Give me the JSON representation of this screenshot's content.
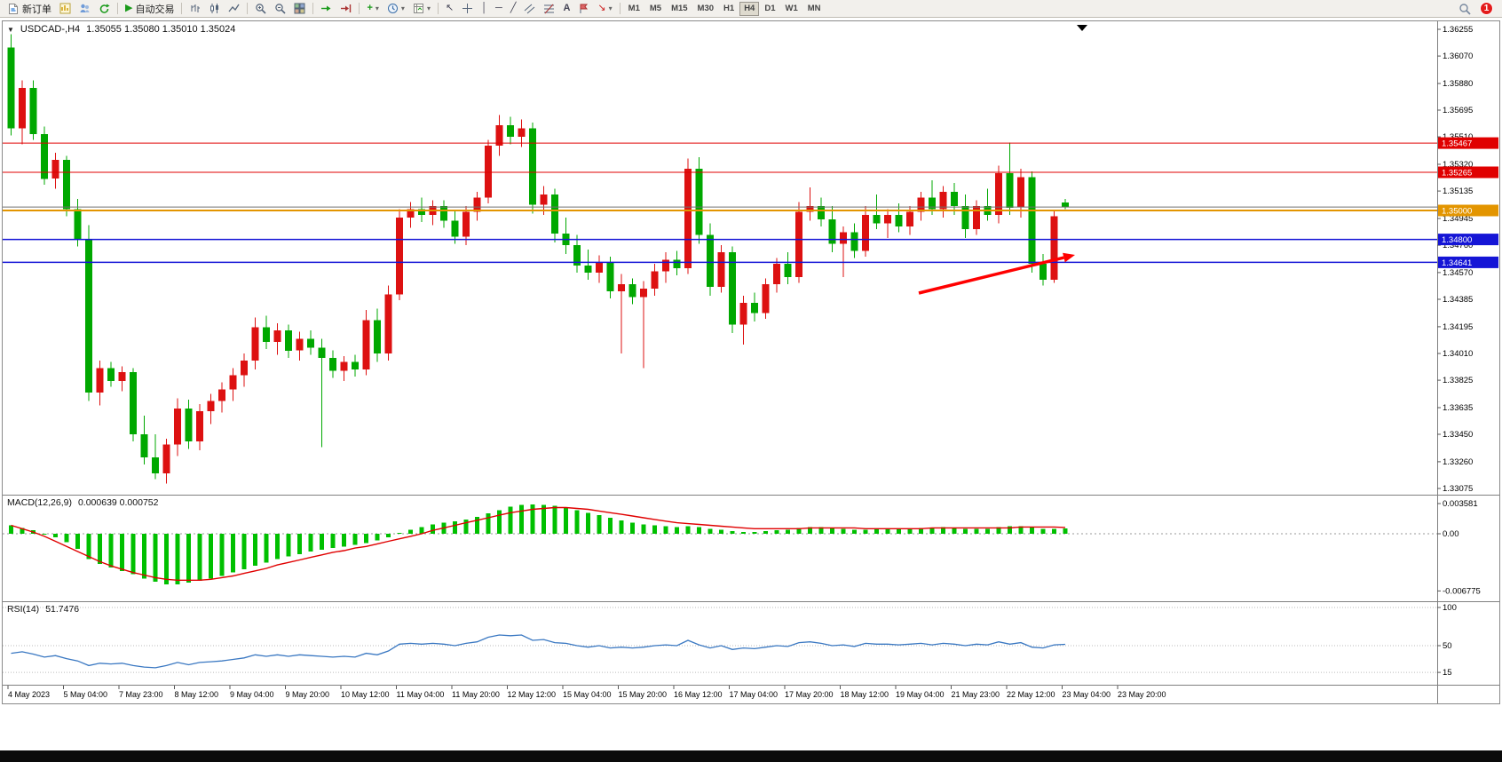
{
  "toolbar": {
    "new_order_label": "新订单",
    "auto_trading_label": "自动交易",
    "timeframes": [
      "M1",
      "M5",
      "M15",
      "M30",
      "H1",
      "H4",
      "D1",
      "W1",
      "MN"
    ],
    "active_timeframe": "H4",
    "notification_count": "1"
  },
  "icons": {
    "collapse_arrow": "▼",
    "play": "▶",
    "cursor": "↖",
    "crosshair": "+",
    "vertical_line": "│",
    "horizontal_line": "─",
    "trendline": "╱",
    "channel": "╱╱",
    "fibonacci": "≡",
    "text_tool": "A",
    "arrows_tool": "↘",
    "dropdown": "▾",
    "indicator_plus": "+"
  },
  "chart_data": [
    {
      "type": "candlestick",
      "title": "USDCAD-,H4",
      "ohlc_label": "1.35055 1.35080 1.35010 1.35024",
      "up_color": "#dd1111",
      "down_color": "#00a800",
      "candles": [
        [
          1.3613,
          1.3622,
          1.3552,
          1.3557
        ],
        [
          1.3557,
          1.359,
          1.3546,
          1.3585
        ],
        [
          1.3585,
          1.359,
          1.3549,
          1.3553
        ],
        [
          1.3553,
          1.3558,
          1.3518,
          1.3522
        ],
        [
          1.3522,
          1.354,
          1.3515,
          1.3535
        ],
        [
          1.3535,
          1.3538,
          1.3496,
          1.3501
        ],
        [
          1.3501,
          1.3508,
          1.3475,
          1.348
        ],
        [
          1.348,
          1.349,
          1.3368,
          1.3374
        ],
        [
          1.3374,
          1.3396,
          1.3365,
          1.3391
        ],
        [
          1.3391,
          1.3395,
          1.3378,
          1.3382
        ],
        [
          1.3382,
          1.3392,
          1.3375,
          1.3388
        ],
        [
          1.3388,
          1.3391,
          1.334,
          1.3345
        ],
        [
          1.3345,
          1.3358,
          1.3324,
          1.3329
        ],
        [
          1.3329,
          1.3345,
          1.3314,
          1.3318
        ],
        [
          1.3318,
          1.3342,
          1.3311,
          1.3338
        ],
        [
          1.3338,
          1.337,
          1.333,
          1.3363
        ],
        [
          1.3363,
          1.3369,
          1.3335,
          1.334
        ],
        [
          1.334,
          1.3366,
          1.3334,
          1.3361
        ],
        [
          1.3361,
          1.3373,
          1.3352,
          1.3368
        ],
        [
          1.3368,
          1.3381,
          1.336,
          1.3376
        ],
        [
          1.3376,
          1.3391,
          1.3368,
          1.3386
        ],
        [
          1.3386,
          1.3401,
          1.3378,
          1.3396
        ],
        [
          1.3396,
          1.3426,
          1.339,
          1.3419
        ],
        [
          1.3419,
          1.3427,
          1.3404,
          1.3409
        ],
        [
          1.3409,
          1.3422,
          1.34,
          1.3417
        ],
        [
          1.3417,
          1.3421,
          1.3398,
          1.3403
        ],
        [
          1.3403,
          1.3416,
          1.3396,
          1.3411
        ],
        [
          1.3411,
          1.3417,
          1.34,
          1.3405
        ],
        [
          1.3405,
          1.3411,
          1.3336,
          1.3398
        ],
        [
          1.3398,
          1.3403,
          1.3384,
          1.3389
        ],
        [
          1.3389,
          1.3399,
          1.3382,
          1.3395
        ],
        [
          1.3395,
          1.34,
          1.3385,
          1.339
        ],
        [
          1.339,
          1.3431,
          1.3386,
          1.3424
        ],
        [
          1.3424,
          1.3432,
          1.3395,
          1.3401
        ],
        [
          1.3401,
          1.3448,
          1.3396,
          1.3442
        ],
        [
          1.3442,
          1.3501,
          1.3438,
          1.3495
        ],
        [
          1.3495,
          1.3506,
          1.3488,
          1.3501
        ],
        [
          1.3501,
          1.3509,
          1.3492,
          1.3497
        ],
        [
          1.3497,
          1.3507,
          1.349,
          1.3503
        ],
        [
          1.3503,
          1.3507,
          1.3488,
          1.3493
        ],
        [
          1.3493,
          1.35,
          1.3477,
          1.3482
        ],
        [
          1.3482,
          1.3503,
          1.3476,
          1.3499
        ],
        [
          1.3499,
          1.3513,
          1.3493,
          1.3509
        ],
        [
          1.3509,
          1.3549,
          1.3505,
          1.3545
        ],
        [
          1.3545,
          1.3566,
          1.3538,
          1.3559
        ],
        [
          1.3559,
          1.3565,
          1.3546,
          1.3551
        ],
        [
          1.3551,
          1.3563,
          1.3544,
          1.3557
        ],
        [
          1.3557,
          1.3561,
          1.3498,
          1.3504
        ],
        [
          1.3504,
          1.3517,
          1.3497,
          1.3511
        ],
        [
          1.3511,
          1.3515,
          1.3478,
          1.3484
        ],
        [
          1.3484,
          1.3495,
          1.347,
          1.3476
        ],
        [
          1.3476,
          1.3483,
          1.3457,
          1.3462
        ],
        [
          1.3462,
          1.3473,
          1.3452,
          1.3457
        ],
        [
          1.3457,
          1.3469,
          1.345,
          1.3464
        ],
        [
          1.3464,
          1.3468,
          1.3439,
          1.3444
        ],
        [
          1.3444,
          1.3456,
          1.3401,
          1.3449
        ],
        [
          1.3449,
          1.3453,
          1.3435,
          1.344
        ],
        [
          1.344,
          1.3451,
          1.3391,
          1.3446
        ],
        [
          1.3446,
          1.3463,
          1.3441,
          1.3458
        ],
        [
          1.3458,
          1.3471,
          1.345,
          1.3466
        ],
        [
          1.3466,
          1.3472,
          1.3455,
          1.346
        ],
        [
          1.346,
          1.3536,
          1.3456,
          1.3529
        ],
        [
          1.3529,
          1.3537,
          1.3477,
          1.3483
        ],
        [
          1.3483,
          1.3491,
          1.3441,
          1.3447
        ],
        [
          1.3447,
          1.3476,
          1.3443,
          1.3471
        ],
        [
          1.3471,
          1.3475,
          1.3415,
          1.3421
        ],
        [
          1.3421,
          1.3441,
          1.3407,
          1.3436
        ],
        [
          1.3436,
          1.3443,
          1.3423,
          1.3429
        ],
        [
          1.3429,
          1.3453,
          1.3425,
          1.3449
        ],
        [
          1.3449,
          1.3467,
          1.3443,
          1.3463
        ],
        [
          1.3463,
          1.3471,
          1.3449,
          1.3454
        ],
        [
          1.3454,
          1.3506,
          1.345,
          1.3499
        ],
        [
          1.3499,
          1.3516,
          1.3493,
          1.3503
        ],
        [
          1.3503,
          1.3509,
          1.3489,
          1.3494
        ],
        [
          1.3494,
          1.3503,
          1.3471,
          1.3477
        ],
        [
          1.3477,
          1.3489,
          1.3454,
          1.3485
        ],
        [
          1.3485,
          1.3491,
          1.3467,
          1.3472
        ],
        [
          1.3472,
          1.3503,
          1.3468,
          1.3497
        ],
        [
          1.3497,
          1.3511,
          1.3487,
          1.3491
        ],
        [
          1.3491,
          1.3501,
          1.3481,
          1.3497
        ],
        [
          1.3497,
          1.3505,
          1.3485,
          1.3489
        ],
        [
          1.3489,
          1.3503,
          1.3483,
          1.3499
        ],
        [
          1.3499,
          1.3513,
          1.3493,
          1.3509
        ],
        [
          1.3509,
          1.3521,
          1.3497,
          1.3501
        ],
        [
          1.3501,
          1.3517,
          1.3495,
          1.3513
        ],
        [
          1.3513,
          1.3519,
          1.3497,
          1.3503
        ],
        [
          1.3503,
          1.3511,
          1.3481,
          1.3487
        ],
        [
          1.3487,
          1.3507,
          1.3483,
          1.3503
        ],
        [
          1.3503,
          1.3515,
          1.3493,
          1.3497
        ],
        [
          1.3497,
          1.3531,
          1.3491,
          1.3526
        ],
        [
          1.3526,
          1.3547,
          1.3497,
          1.3502
        ],
        [
          1.3502,
          1.3529,
          1.3495,
          1.3523
        ],
        [
          1.3523,
          1.3527,
          1.3457,
          1.3463
        ],
        [
          1.3463,
          1.347,
          1.3448,
          1.3452
        ],
        [
          1.3452,
          1.35,
          1.345,
          1.3496
        ],
        [
          1.35055,
          1.3508,
          1.3501,
          1.35024
        ]
      ],
      "hlines": [
        {
          "price": 1.35467,
          "color": "#e00000",
          "width": 1,
          "label": "1.35467"
        },
        {
          "price": 1.35265,
          "color": "#e00000",
          "width": 1,
          "label": "1.35265"
        },
        {
          "price": 1.35024,
          "color": "#707070",
          "width": 1
        },
        {
          "price": 1.35,
          "color": "#e39500",
          "width": 2,
          "label": "1.35000"
        },
        {
          "price": 1.348,
          "color": "#1515d6",
          "width": 1.5,
          "label": "1.34800"
        },
        {
          "price": 1.34641,
          "color": "#1515d6",
          "width": 1.5,
          "label": "1.34641"
        }
      ],
      "y_axis_labels": [
        "1.36255",
        "1.36070",
        "1.35880",
        "1.35695",
        "1.35510",
        "1.35320",
        "1.35135",
        "1.34945",
        "1.34760",
        "1.34570",
        "1.34385",
        "1.34195",
        "1.34010",
        "1.33825",
        "1.33635",
        "1.33450",
        "1.33260",
        "1.33075"
      ],
      "x_axis_labels": [
        "4 May 2023",
        "5 May 04:00",
        "7 May 23:00",
        "8 May 12:00",
        "9 May 04:00",
        "9 May 20:00",
        "10 May 12:00",
        "11 May 04:00",
        "11 May 20:00",
        "12 May 12:00",
        "15 May 04:00",
        "15 May 20:00",
        "16 May 12:00",
        "17 May 04:00",
        "17 May 20:00",
        "18 May 12:00",
        "19 May 04:00",
        "21 May 23:00",
        "22 May 12:00",
        "23 May 04:00",
        "23 May 20:00"
      ],
      "arrow": {
        "from": [
          1032,
          306
        ],
        "to": [
          1208,
          263
        ],
        "color": "#ff0000"
      }
    },
    {
      "type": "bar",
      "title": "MACD(12,26,9)",
      "values_label": "0.000639 0.000752",
      "histogram_color": "#00c000",
      "signal_color": "#e00000",
      "histogram": [
        0.001,
        0.0007,
        0.0004,
        0.0,
        -0.0004,
        -0.001,
        -0.0018,
        -0.003,
        -0.0036,
        -0.004,
        -0.0044,
        -0.0048,
        -0.0053,
        -0.0057,
        -0.006,
        -0.006,
        -0.0058,
        -0.0056,
        -0.0053,
        -0.005,
        -0.0046,
        -0.0042,
        -0.0038,
        -0.0034,
        -0.003,
        -0.0027,
        -0.0024,
        -0.0021,
        -0.0019,
        -0.0017,
        -0.0015,
        -0.0013,
        -0.0011,
        -0.0008,
        -0.0004,
        0.0001,
        0.0005,
        0.0008,
        0.0011,
        0.0013,
        0.0015,
        0.0017,
        0.002,
        0.0024,
        0.0028,
        0.0032,
        0.0034,
        0.0035,
        0.0034,
        0.0033,
        0.0031,
        0.0028,
        0.0025,
        0.0022,
        0.0019,
        0.0016,
        0.0013,
        0.0011,
        0.001,
        0.0009,
        0.0008,
        0.0009,
        0.0008,
        0.0006,
        0.0005,
        0.0003,
        0.0002,
        0.0002,
        0.0003,
        0.0004,
        0.0005,
        0.0007,
        0.0008,
        0.0008,
        0.0007,
        0.0006,
        0.0005,
        0.0005,
        0.0006,
        0.0006,
        0.0006,
        0.0006,
        0.0007,
        0.0007,
        0.0008,
        0.0007,
        0.0006,
        0.0006,
        0.0006,
        0.0008,
        0.0009,
        0.0009,
        0.0008,
        0.0006,
        0.0006,
        0.000639
      ],
      "signal": [
        0.001,
        0.0006,
        0.0002,
        -0.0003,
        -0.0009,
        -0.0015,
        -0.0021,
        -0.0027,
        -0.0033,
        -0.0038,
        -0.0042,
        -0.0046,
        -0.0049,
        -0.0052,
        -0.0054,
        -0.0055,
        -0.0055,
        -0.0055,
        -0.0054,
        -0.0052,
        -0.005,
        -0.0047,
        -0.0044,
        -0.0041,
        -0.0037,
        -0.0034,
        -0.0031,
        -0.0028,
        -0.0025,
        -0.0022,
        -0.002,
        -0.0017,
        -0.0015,
        -0.0012,
        -0.0009,
        -0.0006,
        -0.0003,
        0.0,
        0.0004,
        0.0007,
        0.001,
        0.0013,
        0.0016,
        0.0019,
        0.0022,
        0.0025,
        0.0027,
        0.0029,
        0.003,
        0.0031,
        0.0031,
        0.003,
        0.0029,
        0.0027,
        0.0025,
        0.0023,
        0.0021,
        0.0019,
        0.0017,
        0.0015,
        0.0013,
        0.0012,
        0.0011,
        0.001,
        0.0009,
        0.0008,
        0.0007,
        0.0006,
        0.0006,
        0.0006,
        0.0006,
        0.0006,
        0.0007,
        0.0007,
        0.0007,
        0.0007,
        0.0007,
        0.0006,
        0.0006,
        0.0006,
        0.0006,
        0.0006,
        0.0006,
        0.0007,
        0.0007,
        0.0007,
        0.0007,
        0.0007,
        0.0007,
        0.0007,
        0.0007,
        0.0008,
        0.0008,
        0.0008,
        0.0008,
        0.000752
      ],
      "y_axis_labels": [
        {
          "label": "0.003581",
          "value": 0.003581
        },
        {
          "label": "0.00",
          "value": 0
        },
        {
          "label": "-0.006775",
          "value": -0.006775
        }
      ]
    },
    {
      "type": "line",
      "title": "RSI(14)",
      "value_label": "51.7476",
      "line_color": "#3a78c2",
      "values": [
        40,
        42,
        39,
        35,
        37,
        33,
        30,
        24,
        27,
        26,
        27,
        24,
        22,
        21,
        24,
        28,
        25,
        28,
        29,
        30,
        32,
        34,
        38,
        36,
        38,
        36,
        38,
        37,
        36,
        35,
        36,
        35,
        40,
        38,
        43,
        52,
        53,
        52,
        53,
        52,
        50,
        53,
        55,
        61,
        64,
        63,
        64,
        57,
        58,
        54,
        53,
        50,
        48,
        50,
        47,
        48,
        47,
        48,
        50,
        51,
        50,
        57,
        51,
        47,
        50,
        45,
        47,
        46,
        48,
        50,
        49,
        54,
        55,
        53,
        50,
        51,
        49,
        53,
        52,
        52,
        51,
        52,
        53,
        51,
        53,
        52,
        50,
        52,
        51,
        55,
        52,
        54,
        48,
        47,
        51,
        51.7
      ],
      "levels": [
        {
          "label": "100",
          "value": 100
        },
        {
          "label": "50",
          "value": 50
        },
        {
          "label": "15",
          "value": 15
        }
      ]
    }
  ]
}
